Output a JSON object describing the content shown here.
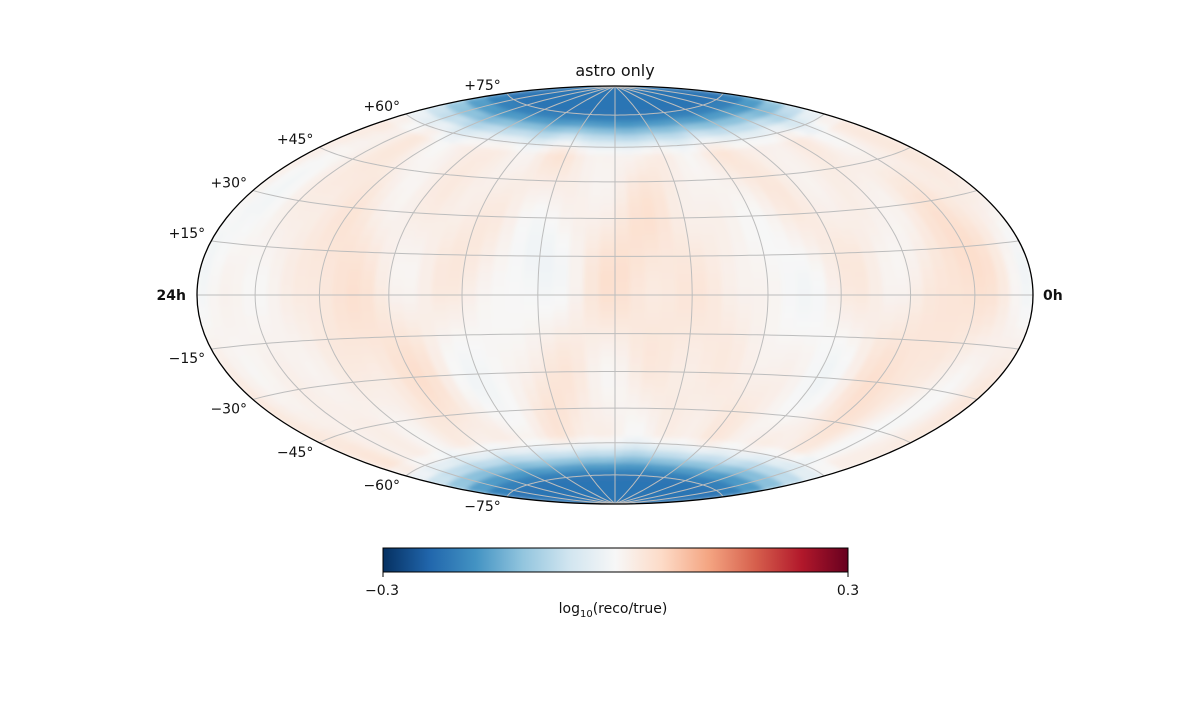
{
  "chart_data": {
    "type": "heatmap",
    "projection": "hammer",
    "title": "astro only",
    "ra_labels": {
      "left": "24h",
      "right": "0h"
    },
    "dec_tick_labels": [
      {
        "dec": 75,
        "label": "+75°"
      },
      {
        "dec": 60,
        "label": "+60°"
      },
      {
        "dec": 45,
        "label": "+45°"
      },
      {
        "dec": 30,
        "label": "+30°"
      },
      {
        "dec": 15,
        "label": "+15°"
      },
      {
        "dec": -15,
        "label": "−15°"
      },
      {
        "dec": -30,
        "label": "−30°"
      },
      {
        "dec": -45,
        "label": "−45°"
      },
      {
        "dec": -60,
        "label": "−60°"
      },
      {
        "dec": -75,
        "label": "−75°"
      }
    ],
    "graticule": {
      "dec_step_deg": 15,
      "ra_step_deg": 30,
      "grid": true
    },
    "colorbar": {
      "colormap": "RdBu_r",
      "vmin": -0.3,
      "vmax": 0.3,
      "tick_labels": [
        "−0.3",
        "0.3"
      ],
      "label_main": "log",
      "label_sub": "10",
      "label_rest": "(reco/true)"
    },
    "field_description": {
      "polar_caps_value": -0.22,
      "cap_start_dec_abs": 55,
      "mid_sky_value_range": [
        -0.02,
        0.05
      ]
    }
  }
}
